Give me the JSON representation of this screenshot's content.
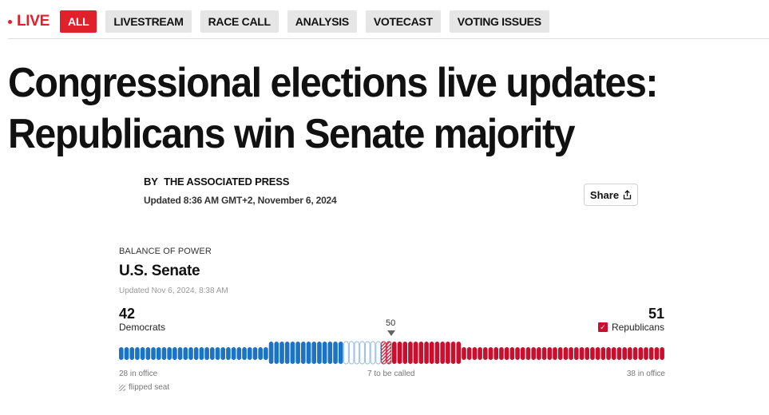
{
  "nav": {
    "live_label": "LIVE",
    "tabs": [
      {
        "label": "ALL",
        "active": true
      },
      {
        "label": "LIVESTREAM",
        "active": false
      },
      {
        "label": "RACE CALL",
        "active": false
      },
      {
        "label": "ANALYSIS",
        "active": false
      },
      {
        "label": "VOTECAST",
        "active": false
      },
      {
        "label": "VOTING ISSUES",
        "active": false
      }
    ]
  },
  "article": {
    "headline_line1": "Congressional elections live updates:",
    "headline_line2": "Republicans win Senate majority",
    "byline_prefix": "BY",
    "byline_author": "THE ASSOCIATED PRESS",
    "updated": "Updated 8:36 AM GMT+2, November 6, 2024",
    "share_label": "Share"
  },
  "balance_of_power": {
    "kicker": "BALANCE OF POWER",
    "title": "U.S. Senate",
    "updated": "Updated Nov 6, 2024, 8:38 AM",
    "democrats": {
      "count": "42",
      "label": "Democrats",
      "in_office": "28 in office",
      "called": 14
    },
    "republicans": {
      "count": "51",
      "label": "Republicans",
      "in_office": "38 in office",
      "called": 13,
      "flipped": 2,
      "majority_check": "✓"
    },
    "to_be_called": {
      "count": 7,
      "label": "7 to be called"
    },
    "majority_threshold": "50",
    "flipped_legend": "flipped seat",
    "colors": {
      "dem": "#1a73c4",
      "dem_light": "#1a73c4",
      "rep": "#c8102e",
      "uncalled_border": "#8fb8e0",
      "accent_red": "#e0202a"
    }
  }
}
